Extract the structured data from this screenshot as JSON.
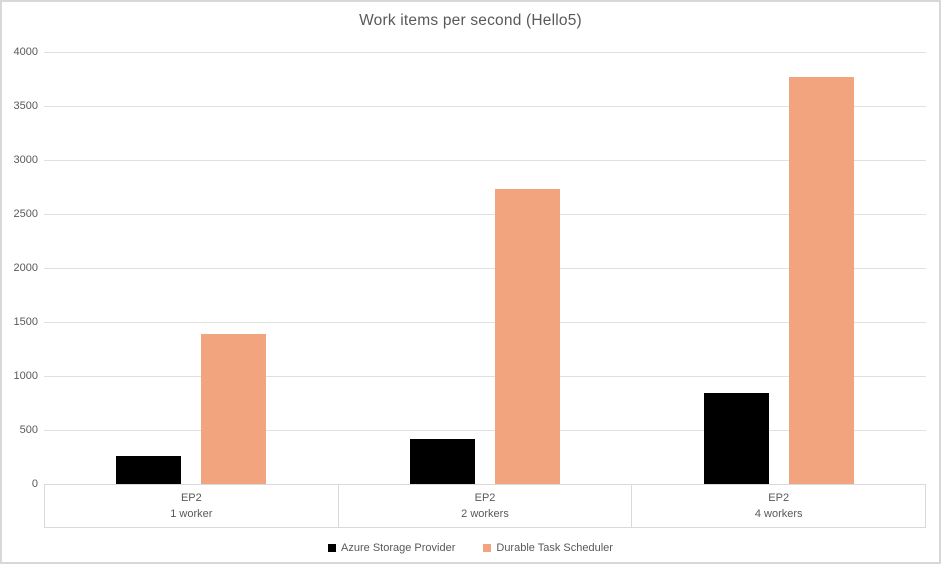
{
  "chart_data": {
    "type": "bar",
    "title": "Work items per second (Hello5)",
    "categories": [
      {
        "plan": "EP2",
        "workers": "1 worker"
      },
      {
        "plan": "EP2",
        "workers": "2 workers"
      },
      {
        "plan": "EP2",
        "workers": "4 workers"
      }
    ],
    "series": [
      {
        "name": "Azure Storage Provider",
        "color": "#000000",
        "values": [
          260,
          420,
          840
        ]
      },
      {
        "name": "Durable Task Scheduler",
        "color": "#F2A47E",
        "values": [
          1390,
          2730,
          3770
        ]
      }
    ],
    "xlabel": "",
    "ylabel": "",
    "ylim": [
      0,
      4000
    ],
    "yticks": [
      0,
      500,
      1000,
      1500,
      2000,
      2500,
      3000,
      3500,
      4000
    ],
    "grid": true,
    "legend_position": "bottom"
  },
  "styles": {
    "text_color": "#595959",
    "gridline_color": "#E0E0E0",
    "frame_border_color": "#D8D8D8",
    "band_border_color": "#D9D9D9",
    "background": "#FFFFFF"
  }
}
